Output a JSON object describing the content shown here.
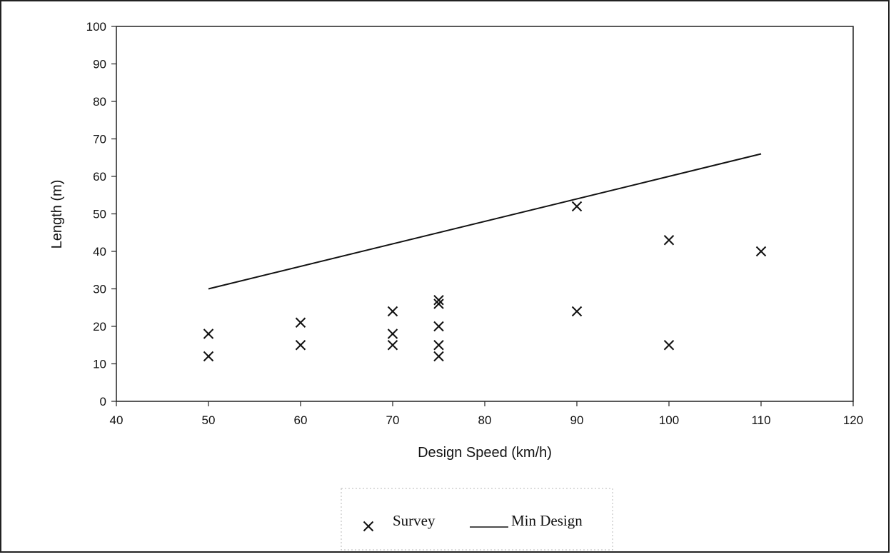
{
  "chart_data": {
    "type": "scatter",
    "title": "",
    "xlabel": "Design Speed (km/h)",
    "ylabel": "Length (m)",
    "xlim": [
      40,
      120
    ],
    "ylim": [
      0,
      100
    ],
    "x_ticks": [
      "40",
      "50",
      "60",
      "70",
      "80",
      "90",
      "100",
      "110",
      "120"
    ],
    "y_ticks": [
      "0",
      "10",
      "20",
      "30",
      "40",
      "50",
      "60",
      "70",
      "80",
      "90",
      "100"
    ],
    "grid": false,
    "legend_position": "bottom",
    "series": [
      {
        "name": "Survey",
        "type": "scatter",
        "marker": "x",
        "points": [
          {
            "x": 50,
            "y": 12
          },
          {
            "x": 50,
            "y": 18
          },
          {
            "x": 60,
            "y": 15
          },
          {
            "x": 60,
            "y": 21
          },
          {
            "x": 70,
            "y": 15
          },
          {
            "x": 70,
            "y": 18
          },
          {
            "x": 70,
            "y": 24
          },
          {
            "x": 75,
            "y": 12
          },
          {
            "x": 75,
            "y": 15
          },
          {
            "x": 75,
            "y": 20
          },
          {
            "x": 75,
            "y": 26
          },
          {
            "x": 75,
            "y": 27
          },
          {
            "x": 90,
            "y": 52
          },
          {
            "x": 90,
            "y": 24
          },
          {
            "x": 100,
            "y": 43
          },
          {
            "x": 100,
            "y": 15
          },
          {
            "x": 110,
            "y": 40
          }
        ]
      },
      {
        "name": "Min Design",
        "type": "line",
        "points": [
          {
            "x": 50,
            "y": 30
          },
          {
            "x": 110,
            "y": 66
          }
        ]
      }
    ]
  }
}
